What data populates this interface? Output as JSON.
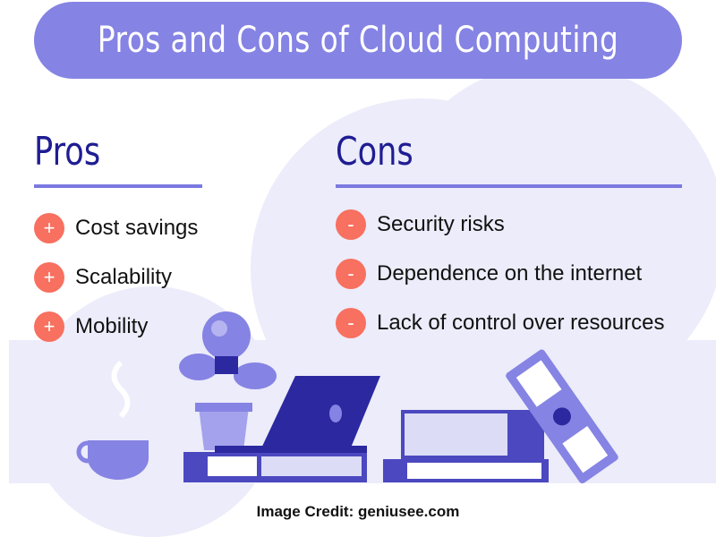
{
  "title": "Pros and Cons of Cloud Computing",
  "pros": {
    "heading": "Pros",
    "bullet_symbol": "+",
    "items": [
      "Cost savings",
      "Scalability",
      "Mobility"
    ]
  },
  "cons": {
    "heading": "Cons",
    "bullet_symbol": "-",
    "items": [
      "Security risks",
      "Dependence on the internet",
      "Lack of control over resources"
    ]
  },
  "credit": "Image Credit: geniusee.com",
  "colors": {
    "accent": "#8583e3",
    "heading": "#1f1d93",
    "bullet": "#f8705f",
    "cloud": "#ececfa"
  }
}
